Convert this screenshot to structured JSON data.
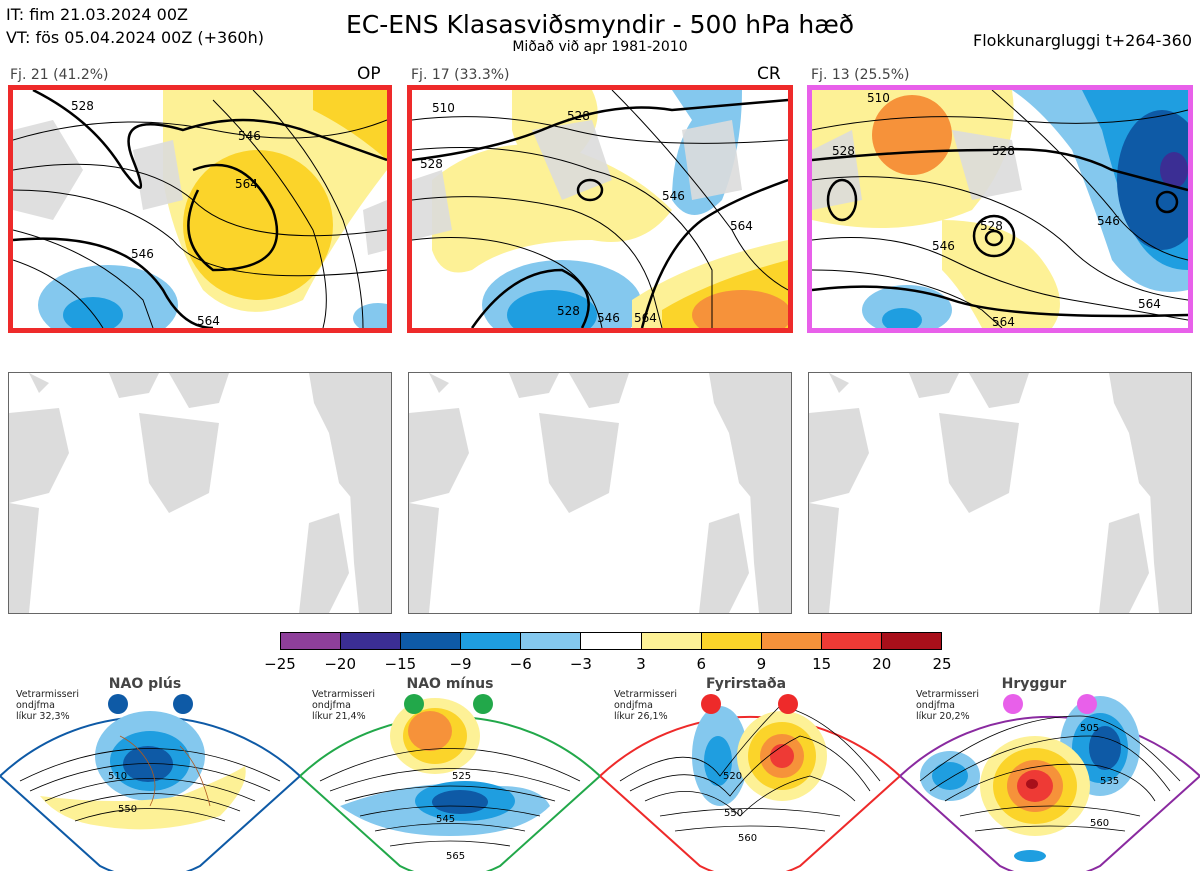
{
  "header": {
    "it_line": "IT: fim 21.03.2024 00Z",
    "vt_line": "VT: fös 05.04.2024 00Z  (+360h)",
    "title": "EC-ENS Klasasviðsmyndir - 500 hPa hæð",
    "subtitle": "Miðað við apr 1981-2010",
    "window_label": "Flokkunargluggi t+264-360"
  },
  "clusters": [
    {
      "label": "Fj. 21 (41.2%)",
      "tag": "OP",
      "frame_color": "#ee2a2a",
      "contours": [
        "528",
        "546",
        "564",
        "546",
        "564"
      ]
    },
    {
      "label": "Fj. 17 (33.3%)",
      "tag": "CR",
      "frame_color": "#ee2a2a",
      "contours": [
        "510",
        "528",
        "528",
        "546",
        "564",
        "528",
        "546",
        "564"
      ]
    },
    {
      "label": "Fj. 13 (25.5%)",
      "tag": "",
      "frame_color": "#e860ea",
      "contours": [
        "510",
        "528",
        "528",
        "528",
        "546",
        "546",
        "564",
        "564"
      ]
    }
  ],
  "colorbar": {
    "colors": [
      "#8e3f9a",
      "#3b2e94",
      "#0e5aa6",
      "#1f9ee0",
      "#84c8ee",
      "#ffffff",
      "#fdf196",
      "#fbd42a",
      "#f6923a",
      "#ee3a35",
      "#a80f1a"
    ],
    "ticks": [
      "−25",
      "−20",
      "−15",
      "−9",
      "−6",
      "−3",
      "3",
      "6",
      "9",
      "15",
      "20",
      "25"
    ]
  },
  "regimes": [
    {
      "name": "NAO plús",
      "note_line1": "Vetrarmisseri",
      "note_line2": "ondjfma",
      "note_line3": "líkur 32,3%",
      "color": "#0e5aa6",
      "contour_labels": [
        "510",
        "550"
      ]
    },
    {
      "name": "NAO mínus",
      "note_line1": "Vetrarmisseri",
      "note_line2": "ondjfma",
      "note_line3": "líkur 21,4%",
      "color": "#22a84a",
      "contour_labels": [
        "525",
        "545",
        "565"
      ]
    },
    {
      "name": "Fyrirstaða",
      "note_line1": "Vetrarmisseri",
      "note_line2": "ondjfma",
      "note_line3": "líkur 26,1%",
      "color": "#ee2a2a",
      "contour_labels": [
        "520",
        "550",
        "560"
      ]
    },
    {
      "name": "Hryggur",
      "note_line1": "Vetrarmisseri",
      "note_line2": "ondjfma",
      "note_line3": "líkur 20,2%",
      "color": "#e860ea",
      "contour_labels": [
        "505",
        "535",
        "560"
      ]
    }
  ]
}
